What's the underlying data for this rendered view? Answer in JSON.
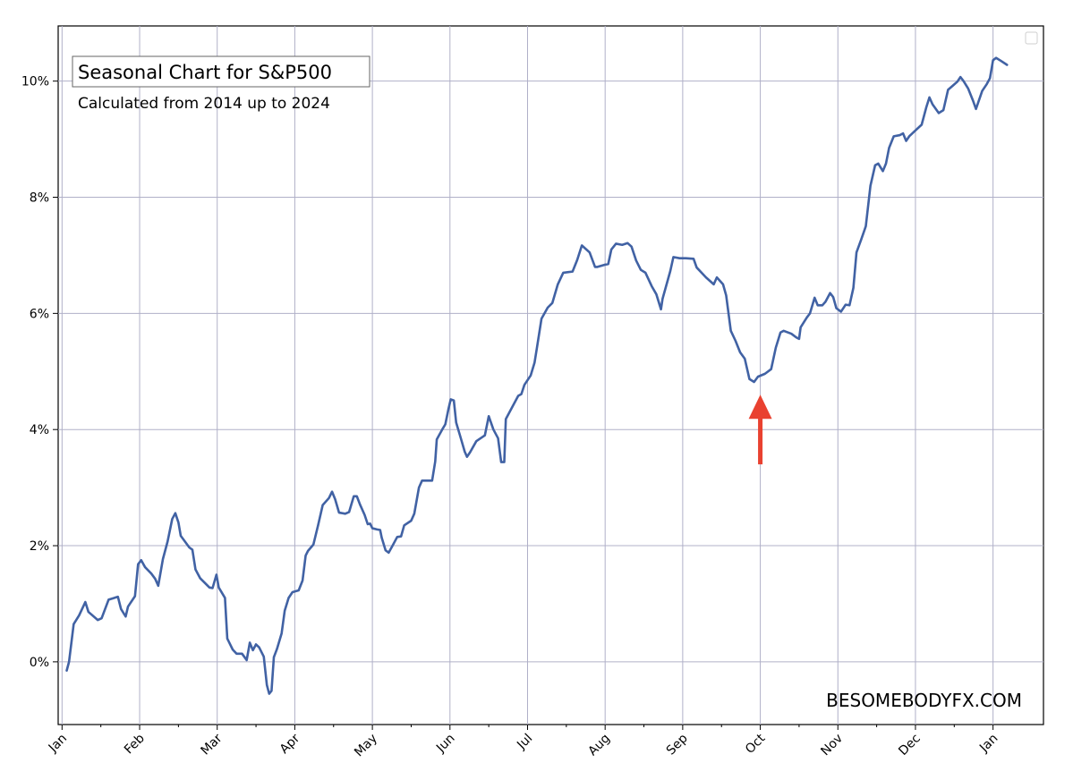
{
  "chart_data": {
    "type": "line",
    "title": "Seasonal Chart for S&P500",
    "subtitle": "Calculated from 2014 up to 2024",
    "watermark": "BESOMEBODYFX.COM",
    "xlabel": "",
    "ylabel": "",
    "x_ticks": [
      "Jan",
      "Feb",
      "Mar",
      "Apr",
      "May",
      "Jun",
      "Jul",
      "Aug",
      "Sep",
      "Oct",
      "Nov",
      "Dec",
      "Jan"
    ],
    "y_ticks": [
      "0%",
      "2%",
      "4%",
      "6%",
      "8%",
      "10%"
    ],
    "x_range_months": [
      -0.05,
      12.65
    ],
    "y_range_percent": [
      -1.08,
      10.95
    ],
    "grid": true,
    "legend": "top-right",
    "line_color": "#4162a4",
    "arrow_color": "#e94130",
    "annotation": {
      "type": "arrow-up",
      "x_month": 9.0,
      "y_tip_percent": 4.6,
      "y_tail_percent": 3.4
    },
    "series": [
      {
        "values": [
          [
            0.06,
            -0.15
          ],
          [
            0.09,
            0.0
          ],
          [
            0.15,
            0.65
          ],
          [
            0.22,
            0.8
          ],
          [
            0.3,
            1.03
          ],
          [
            0.34,
            0.86
          ],
          [
            0.46,
            0.72
          ],
          [
            0.51,
            0.75
          ],
          [
            0.6,
            1.07
          ],
          [
            0.72,
            1.12
          ],
          [
            0.76,
            0.91
          ],
          [
            0.82,
            0.78
          ],
          [
            0.85,
            0.95
          ],
          [
            0.94,
            1.13
          ],
          [
            0.98,
            1.68
          ],
          [
            1.02,
            1.75
          ],
          [
            1.07,
            1.63
          ],
          [
            1.15,
            1.52
          ],
          [
            1.2,
            1.43
          ],
          [
            1.24,
            1.31
          ],
          [
            1.3,
            1.77
          ],
          [
            1.36,
            2.07
          ],
          [
            1.42,
            2.46
          ],
          [
            1.46,
            2.56
          ],
          [
            1.5,
            2.4
          ],
          [
            1.53,
            2.17
          ],
          [
            1.64,
            1.97
          ],
          [
            1.68,
            1.93
          ],
          [
            1.72,
            1.59
          ],
          [
            1.78,
            1.44
          ],
          [
            1.9,
            1.28
          ],
          [
            1.94,
            1.27
          ],
          [
            1.99,
            1.5
          ],
          [
            2.02,
            1.28
          ],
          [
            2.1,
            1.1
          ],
          [
            2.13,
            0.4
          ],
          [
            2.2,
            0.21
          ],
          [
            2.25,
            0.14
          ],
          [
            2.32,
            0.14
          ],
          [
            2.38,
            0.03
          ],
          [
            2.42,
            0.33
          ],
          [
            2.46,
            0.2
          ],
          [
            2.5,
            0.3
          ],
          [
            2.54,
            0.25
          ],
          [
            2.6,
            0.09
          ],
          [
            2.64,
            -0.4
          ],
          [
            2.67,
            -0.55
          ],
          [
            2.7,
            -0.5
          ],
          [
            2.73,
            0.08
          ],
          [
            2.77,
            0.22
          ],
          [
            2.83,
            0.49
          ],
          [
            2.87,
            0.88
          ],
          [
            2.92,
            1.1
          ],
          [
            2.97,
            1.2
          ],
          [
            3.05,
            1.23
          ],
          [
            3.1,
            1.4
          ],
          [
            3.14,
            1.83
          ],
          [
            3.17,
            1.91
          ],
          [
            3.24,
            2.02
          ],
          [
            3.3,
            2.35
          ],
          [
            3.36,
            2.7
          ],
          [
            3.44,
            2.82
          ],
          [
            3.48,
            2.93
          ],
          [
            3.52,
            2.8
          ],
          [
            3.57,
            2.57
          ],
          [
            3.65,
            2.55
          ],
          [
            3.7,
            2.58
          ],
          [
            3.76,
            2.85
          ],
          [
            3.8,
            2.85
          ],
          [
            3.84,
            2.71
          ],
          [
            3.9,
            2.53
          ],
          [
            3.94,
            2.37
          ],
          [
            3.97,
            2.38
          ],
          [
            4.0,
            2.3
          ],
          [
            4.06,
            2.28
          ],
          [
            4.1,
            2.27
          ],
          [
            4.12,
            2.14
          ],
          [
            4.17,
            1.92
          ],
          [
            4.21,
            1.88
          ],
          [
            4.26,
            2.0
          ],
          [
            4.32,
            2.15
          ],
          [
            4.37,
            2.16
          ],
          [
            4.41,
            2.35
          ],
          [
            4.5,
            2.43
          ],
          [
            4.54,
            2.55
          ],
          [
            4.6,
            3.0
          ],
          [
            4.64,
            3.12
          ],
          [
            4.7,
            3.12
          ],
          [
            4.77,
            3.12
          ],
          [
            4.81,
            3.45
          ],
          [
            4.83,
            3.83
          ],
          [
            4.9,
            4.0
          ],
          [
            4.94,
            4.09
          ],
          [
            4.98,
            4.35
          ],
          [
            5.01,
            4.52
          ],
          [
            5.05,
            4.5
          ],
          [
            5.08,
            4.12
          ],
          [
            5.14,
            3.85
          ],
          [
            5.19,
            3.62
          ],
          [
            5.22,
            3.53
          ],
          [
            5.26,
            3.61
          ],
          [
            5.34,
            3.8
          ],
          [
            5.45,
            3.9
          ],
          [
            5.5,
            4.23
          ],
          [
            5.56,
            4.0
          ],
          [
            5.62,
            3.85
          ],
          [
            5.66,
            3.44
          ],
          [
            5.7,
            3.44
          ],
          [
            5.72,
            4.18
          ],
          [
            5.8,
            4.38
          ],
          [
            5.88,
            4.58
          ],
          [
            5.92,
            4.61
          ],
          [
            5.96,
            4.77
          ],
          [
            6.04,
            4.93
          ],
          [
            6.09,
            5.15
          ],
          [
            6.12,
            5.4
          ],
          [
            6.18,
            5.91
          ],
          [
            6.26,
            6.1
          ],
          [
            6.32,
            6.18
          ],
          [
            6.39,
            6.5
          ],
          [
            6.46,
            6.7
          ],
          [
            6.58,
            6.72
          ],
          [
            6.64,
            6.92
          ],
          [
            6.7,
            7.17
          ],
          [
            6.8,
            7.05
          ],
          [
            6.87,
            6.8
          ],
          [
            6.9,
            6.8
          ],
          [
            7.0,
            6.84
          ],
          [
            7.04,
            6.85
          ],
          [
            7.08,
            7.1
          ],
          [
            7.14,
            7.2
          ],
          [
            7.22,
            7.18
          ],
          [
            7.29,
            7.21
          ],
          [
            7.34,
            7.15
          ],
          [
            7.4,
            6.91
          ],
          [
            7.46,
            6.75
          ],
          [
            7.52,
            6.7
          ],
          [
            7.6,
            6.47
          ],
          [
            7.66,
            6.33
          ],
          [
            7.72,
            6.07
          ],
          [
            7.74,
            6.25
          ],
          [
            7.84,
            6.73
          ],
          [
            7.88,
            6.97
          ],
          [
            7.96,
            6.95
          ],
          [
            8.04,
            6.95
          ],
          [
            8.14,
            6.94
          ],
          [
            8.18,
            6.79
          ],
          [
            8.3,
            6.62
          ],
          [
            8.4,
            6.5
          ],
          [
            8.44,
            6.62
          ],
          [
            8.52,
            6.5
          ],
          [
            8.56,
            6.31
          ],
          [
            8.62,
            5.7
          ],
          [
            8.68,
            5.53
          ],
          [
            8.74,
            5.33
          ],
          [
            8.8,
            5.22
          ],
          [
            8.86,
            4.87
          ],
          [
            8.92,
            4.82
          ],
          [
            8.97,
            4.91
          ],
          [
            9.06,
            4.96
          ],
          [
            9.14,
            5.04
          ],
          [
            9.2,
            5.41
          ],
          [
            9.26,
            5.67
          ],
          [
            9.3,
            5.7
          ],
          [
            9.4,
            5.65
          ],
          [
            9.46,
            5.59
          ],
          [
            9.5,
            5.56
          ],
          [
            9.52,
            5.76
          ],
          [
            9.6,
            5.93
          ],
          [
            9.64,
            6.0
          ],
          [
            9.7,
            6.27
          ],
          [
            9.74,
            6.14
          ],
          [
            9.8,
            6.14
          ],
          [
            9.84,
            6.2
          ],
          [
            9.9,
            6.35
          ],
          [
            9.94,
            6.28
          ],
          [
            9.98,
            6.09
          ],
          [
            10.04,
            6.03
          ],
          [
            10.1,
            6.15
          ],
          [
            10.15,
            6.14
          ],
          [
            10.2,
            6.44
          ],
          [
            10.24,
            7.05
          ],
          [
            10.3,
            7.27
          ],
          [
            10.36,
            7.5
          ],
          [
            10.42,
            8.2
          ],
          [
            10.48,
            8.55
          ],
          [
            10.52,
            8.58
          ],
          [
            10.58,
            8.45
          ],
          [
            10.62,
            8.58
          ],
          [
            10.66,
            8.85
          ],
          [
            10.72,
            9.05
          ],
          [
            10.8,
            9.07
          ],
          [
            10.84,
            9.1
          ],
          [
            10.88,
            8.97
          ],
          [
            10.92,
            9.05
          ],
          [
            11.0,
            9.15
          ],
          [
            11.08,
            9.25
          ],
          [
            11.14,
            9.55
          ],
          [
            11.18,
            9.72
          ],
          [
            11.22,
            9.6
          ],
          [
            11.3,
            9.45
          ],
          [
            11.36,
            9.5
          ],
          [
            11.42,
            9.85
          ],
          [
            11.48,
            9.92
          ],
          [
            11.54,
            9.99
          ],
          [
            11.58,
            10.07
          ],
          [
            11.62,
            10.0
          ],
          [
            11.68,
            9.87
          ],
          [
            11.74,
            9.67
          ],
          [
            11.78,
            9.52
          ],
          [
            11.86,
            9.83
          ],
          [
            11.92,
            9.95
          ],
          [
            11.96,
            10.05
          ],
          [
            12.0,
            10.36
          ],
          [
            12.04,
            10.4
          ],
          [
            12.1,
            10.35
          ],
          [
            12.18,
            10.28
          ]
        ]
      }
    ]
  }
}
